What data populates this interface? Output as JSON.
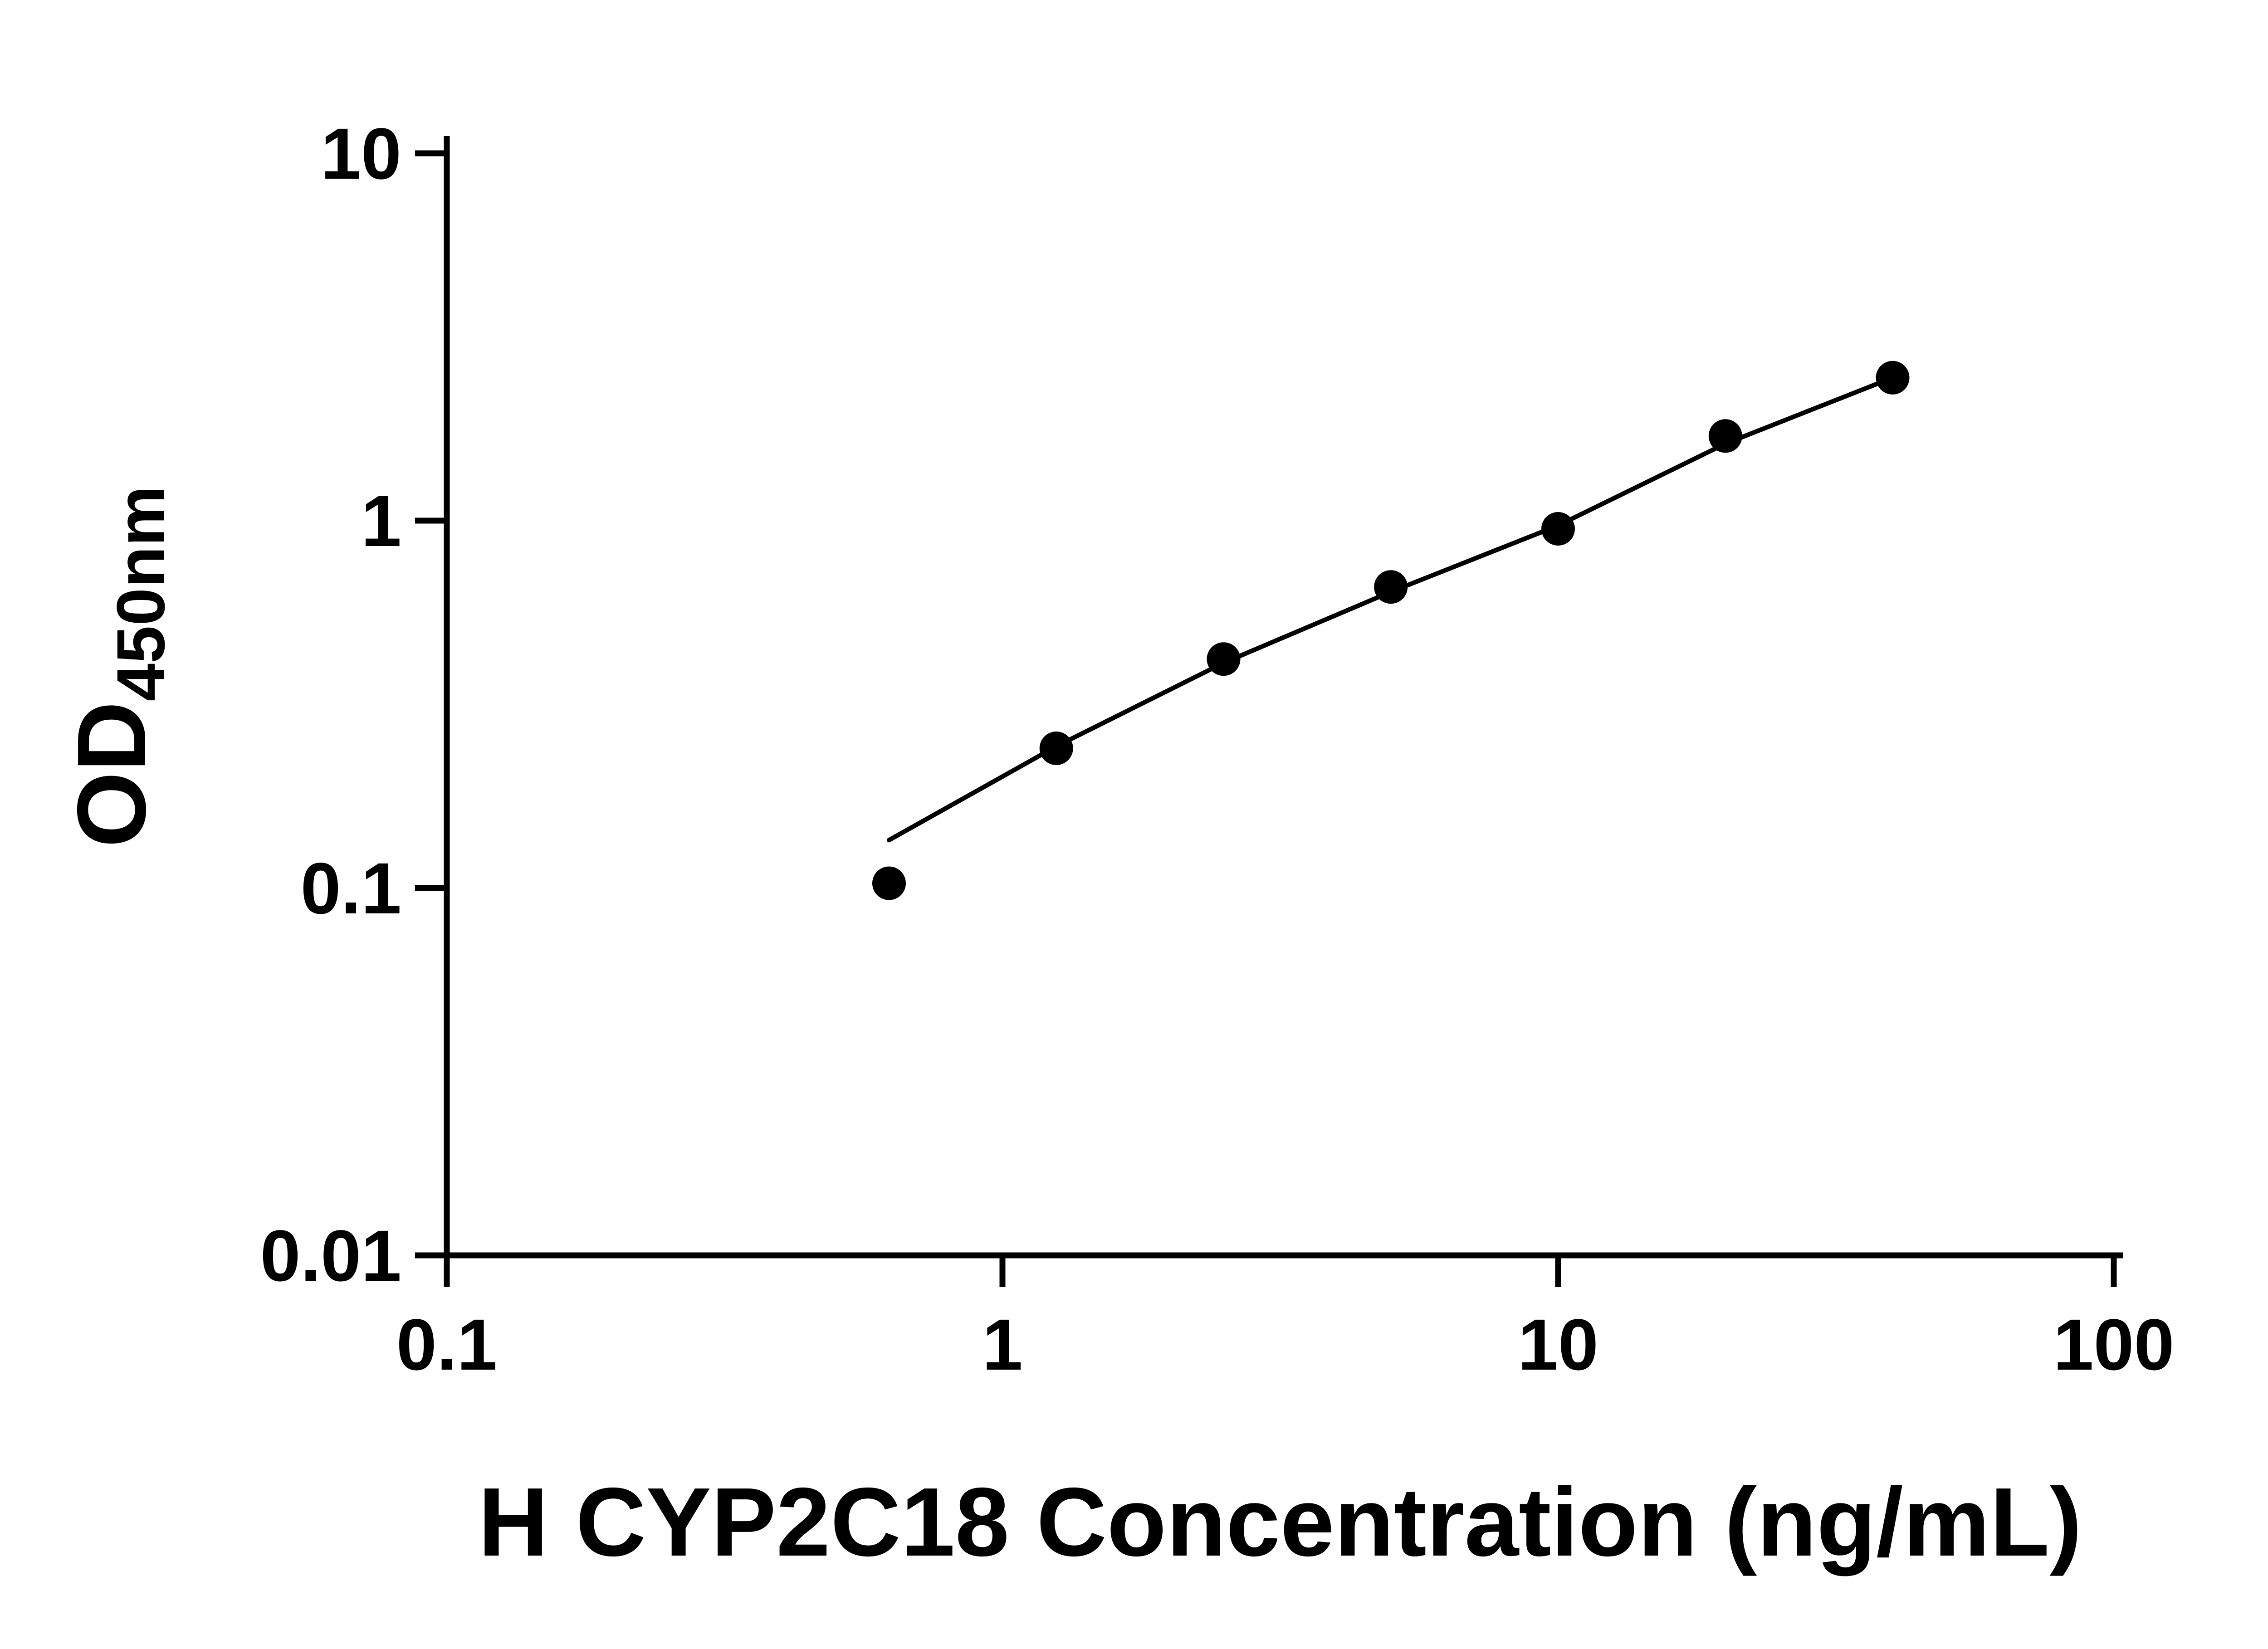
{
  "chart_data": {
    "type": "scatter",
    "xlabel": "H CYP2C18 Concentration (ng/mL)",
    "ylabel": "OD450nm",
    "ylabel_main": "OD",
    "ylabel_sub": "450nm",
    "x_scale": "log",
    "y_scale": "log",
    "xlim": [
      0.1,
      100
    ],
    "ylim": [
      0.01,
      10
    ],
    "x_tick_values": [
      0.1,
      1,
      10,
      100
    ],
    "x_tick_labels": [
      "0.1",
      "1",
      "10",
      "100"
    ],
    "y_tick_values": [
      10,
      1,
      0.1,
      0.01
    ],
    "y_tick_labels": [
      "10",
      "1",
      "0.1",
      "0.01"
    ],
    "grid": false,
    "legend": "none",
    "background": "#ffffff",
    "axis_color": "#000000",
    "marker_color": "#000000",
    "line_color": "#000000",
    "series": [
      {
        "name": "fit-line",
        "type": "line",
        "x": [
          0.625,
          1.25,
          2.5,
          5,
          10,
          20,
          40
        ],
        "y": [
          0.135,
          0.243,
          0.41,
          0.64,
          0.97,
          1.62,
          2.45
        ]
      },
      {
        "name": "standard-points",
        "type": "scatter",
        "marker": "filled-circle",
        "x": [
          0.625,
          1.25,
          2.5,
          5,
          10,
          20,
          40
        ],
        "y": [
          0.103,
          0.24,
          0.42,
          0.66,
          0.95,
          1.7,
          2.45
        ]
      }
    ]
  }
}
